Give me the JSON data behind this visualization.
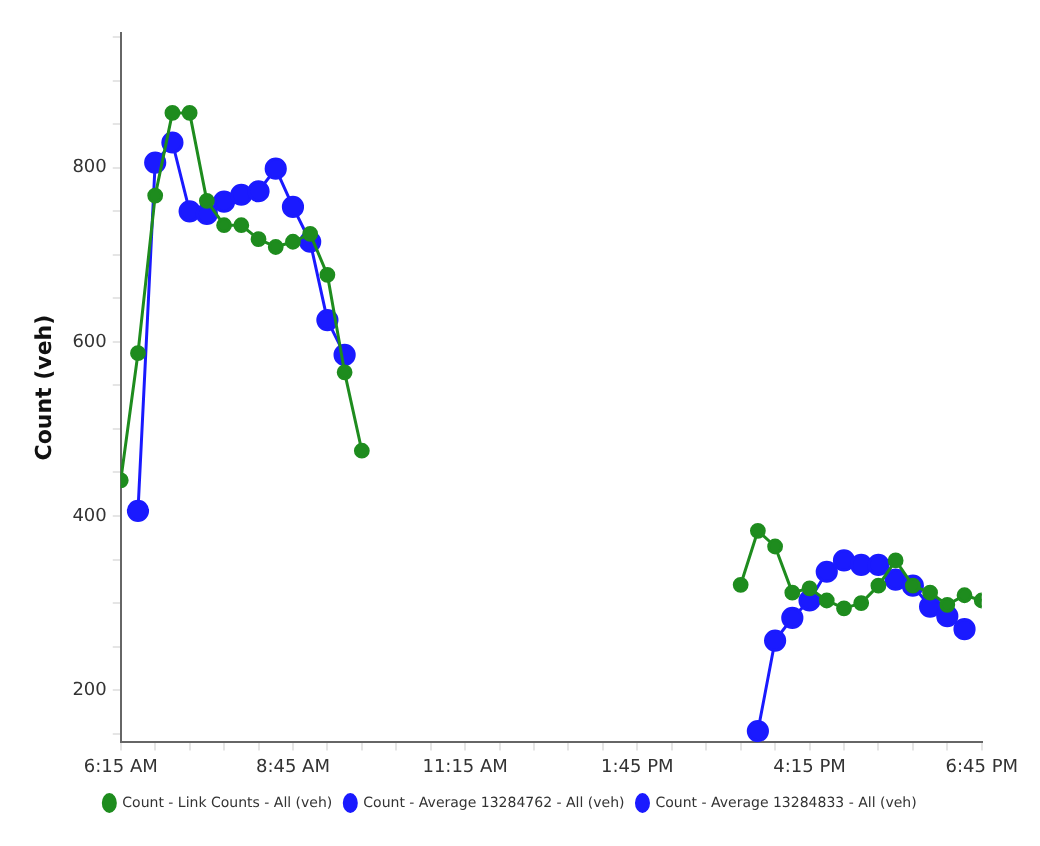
{
  "chart_data": {
    "type": "line",
    "ylabel": "Count (veh)",
    "xlim": [
      6.25,
      18.75
    ],
    "xticks": [
      {
        "value": 6.25,
        "label": "6:15 AM"
      },
      {
        "value": 6.75,
        "label": null
      },
      {
        "value": 7.25,
        "label": null
      },
      {
        "value": 7.75,
        "label": null
      },
      {
        "value": 8.25,
        "label": null
      },
      {
        "value": 8.75,
        "label": "8:45 AM"
      },
      {
        "value": 9.25,
        "label": null
      },
      {
        "value": 9.75,
        "label": null
      },
      {
        "value": 10.25,
        "label": null
      },
      {
        "value": 10.75,
        "label": null
      },
      {
        "value": 11.25,
        "label": "11:15 AM"
      },
      {
        "value": 11.75,
        "label": null
      },
      {
        "value": 12.25,
        "label": null
      },
      {
        "value": 12.75,
        "label": null
      },
      {
        "value": 13.25,
        "label": null
      },
      {
        "value": 13.75,
        "label": "1:45 PM"
      },
      {
        "value": 14.25,
        "label": null
      },
      {
        "value": 14.75,
        "label": null
      },
      {
        "value": 15.25,
        "label": null
      },
      {
        "value": 15.75,
        "label": null
      },
      {
        "value": 16.25,
        "label": "4:15 PM"
      },
      {
        "value": 16.75,
        "label": null
      },
      {
        "value": 17.25,
        "label": null
      },
      {
        "value": 17.75,
        "label": null
      },
      {
        "value": 18.25,
        "label": null
      },
      {
        "value": 18.75,
        "label": "6:45 PM"
      }
    ],
    "ylim": [
      140,
      955
    ],
    "yticks": [
      {
        "value": 150,
        "label": null
      },
      200,
      {
        "value": 250,
        "label": null
      },
      {
        "value": 300,
        "label": null
      },
      {
        "value": 350,
        "label": null
      },
      400,
      {
        "value": 450,
        "label": null
      },
      {
        "value": 500,
        "label": null
      },
      {
        "value": 550,
        "label": null
      },
      600,
      {
        "value": 650,
        "label": null
      },
      {
        "value": 700,
        "label": null
      },
      {
        "value": 750,
        "label": null
      },
      800,
      {
        "value": 850,
        "label": null
      },
      {
        "value": 900,
        "label": null
      },
      {
        "value": 950,
        "label": null
      }
    ],
    "grid": false,
    "legend": "bottom",
    "marker": "circle",
    "line_style": "solid",
    "series": [
      {
        "name": "Count - Link Counts - All (veh)",
        "color": "#1e8c1e",
        "x": [
          6.25,
          6.5,
          6.75,
          7,
          7.25,
          7.5,
          7.75,
          8,
          8.25,
          8.5,
          8.75,
          9,
          9.25,
          9.5,
          9.75,
          null,
          15.25,
          15.5,
          15.75,
          16,
          16.25,
          16.5,
          16.75,
          17,
          17.25,
          17.5,
          17.75,
          18,
          18.25,
          18.5,
          18.75
        ],
        "values": [
          441,
          587,
          768,
          863,
          863,
          762,
          734,
          734,
          718,
          709,
          715,
          724,
          677,
          565,
          475,
          null,
          321,
          383,
          365,
          312,
          317,
          303,
          294,
          300,
          320,
          349,
          320,
          312,
          298,
          309,
          303
        ]
      },
      {
        "name": "Count - Average 13284762 - All (veh)",
        "color": "#1a1aff",
        "x": [
          6.5,
          6.75,
          7,
          7.25,
          7.5,
          7.75,
          8,
          8.25,
          8.5,
          8.75,
          9,
          9.25,
          9.5
        ],
        "values": [
          406,
          806,
          829,
          750,
          747,
          761,
          769,
          773,
          799,
          755,
          715,
          625,
          585
        ]
      },
      {
        "name": "Count - Average 13284833 - All (veh)",
        "color": "#1a1aff",
        "x": [
          15.5,
          15.75,
          16,
          16.25,
          16.5,
          16.75,
          17,
          17.25,
          17.5,
          17.75,
          18,
          18.25,
          18.5
        ],
        "values": [
          153,
          257,
          283,
          303,
          336,
          349,
          344,
          344,
          327,
          320,
          296,
          285,
          270
        ]
      }
    ]
  }
}
